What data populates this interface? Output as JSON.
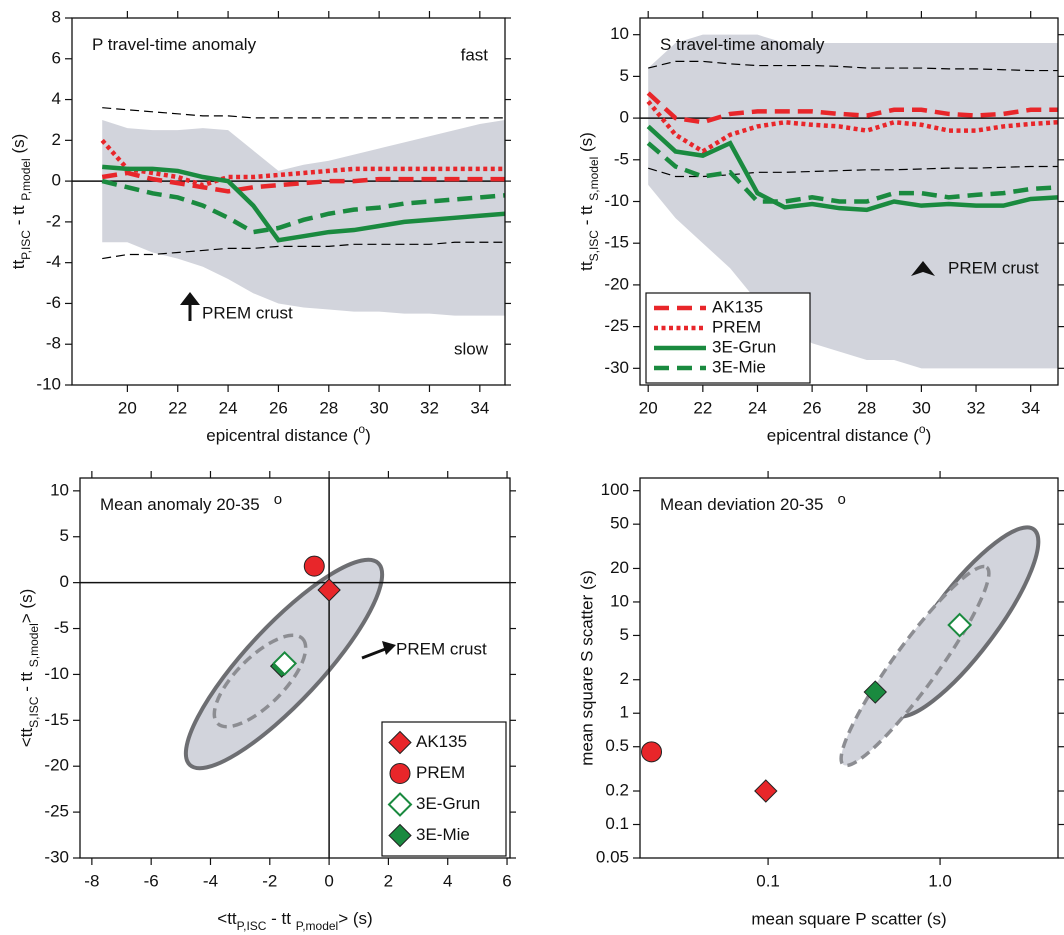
{
  "chart_data": [
    {
      "type": "line",
      "title": "P travel-time anomaly",
      "xlabel": [
        "epicentral distance (",
        "o",
        ")"
      ],
      "ylabel": [
        "tt",
        "P,ISC",
        " - tt ",
        "P,model",
        " (s)"
      ],
      "x": [
        19,
        20,
        21,
        22,
        23,
        24,
        25,
        26,
        27,
        28,
        29,
        30,
        31,
        32,
        33,
        34,
        35
      ],
      "xlim": [
        17.8,
        35
      ],
      "xticks": [
        20,
        22,
        24,
        26,
        28,
        30,
        32,
        34
      ],
      "ylim": [
        -10,
        8
      ],
      "yticks": [
        -10,
        -8,
        -6,
        -4,
        -2,
        0,
        2,
        4,
        6,
        8
      ],
      "hline": 0,
      "envelope": {
        "color": "#d2d4dc",
        "upper": [
          3.0,
          2.6,
          2.5,
          2.5,
          2.6,
          2.5,
          1.5,
          0.5,
          0.8,
          1.0,
          1.3,
          1.6,
          1.9,
          2.2,
          2.5,
          2.8,
          3.0
        ],
        "lower": [
          -3.0,
          -3.0,
          -3.5,
          -3.8,
          -4.2,
          -4.8,
          -5.5,
          -6.0,
          -6.2,
          -6.3,
          -6.4,
          -6.4,
          -6.5,
          -6.5,
          -6.6,
          -6.6,
          -6.6
        ]
      },
      "series": [
        {
          "color": "#000000",
          "style": "dashed",
          "values": [
            3.6,
            3.5,
            3.4,
            3.3,
            3.2,
            3.2,
            3.1,
            3.1,
            3.1,
            3.1,
            3.1,
            3.1,
            3.1,
            3.1,
            3.1,
            3.1,
            3.1
          ]
        },
        {
          "color": "#000000",
          "style": "dashed",
          "values": [
            -3.8,
            -3.6,
            -3.6,
            -3.5,
            -3.4,
            -3.3,
            -3.3,
            -3.2,
            -3.2,
            -3.2,
            -3.1,
            -3.1,
            -3.1,
            -3.1,
            -3.0,
            -3.0,
            -3.0
          ]
        },
        {
          "color": "#e8262a",
          "style": "dashed",
          "values": [
            0.2,
            0.4,
            0.1,
            -0.1,
            -0.3,
            -0.5,
            -0.3,
            -0.2,
            -0.1,
            0,
            0,
            0.1,
            0.1,
            0.1,
            0.1,
            0.1,
            0.1
          ]
        },
        {
          "color": "#e8262a",
          "style": "dotted",
          "values": [
            2.0,
            0.6,
            0.4,
            0.2,
            -0.2,
            0.2,
            0.2,
            0.3,
            0.4,
            0.5,
            0.6,
            0.6,
            0.6,
            0.6,
            0.6,
            0.6,
            0.6
          ]
        },
        {
          "color": "#1a8a3f",
          "style": "solid",
          "values": [
            0.7,
            0.6,
            0.6,
            0.5,
            0.2,
            0,
            -1.2,
            -2.9,
            -2.7,
            -2.5,
            -2.4,
            -2.2,
            -2.0,
            -1.9,
            -1.8,
            -1.7,
            -1.6
          ]
        },
        {
          "color": "#1a8a3f",
          "style": "dashed",
          "values": [
            0,
            -0.3,
            -0.6,
            -0.8,
            -1.2,
            -1.8,
            -2.5,
            -2.3,
            -1.9,
            -1.6,
            -1.4,
            -1.3,
            -1.1,
            -1.0,
            -0.9,
            -0.8,
            -0.7
          ]
        }
      ],
      "annotations": [
        "fast",
        "slow",
        "PREM crust"
      ]
    },
    {
      "type": "line",
      "title": "S travel-time anomaly",
      "xlabel": [
        "epicentral distance (",
        "o",
        ")"
      ],
      "ylabel": [
        "tt",
        "S,ISC",
        " - tt ",
        "S,model",
        " (s)"
      ],
      "x": [
        20,
        21,
        22,
        23,
        24,
        25,
        26,
        27,
        28,
        29,
        30,
        31,
        32,
        33,
        34,
        35
      ],
      "xlim": [
        19.7,
        35
      ],
      "xticks": [
        20,
        22,
        24,
        26,
        28,
        30,
        32,
        34
      ],
      "ylim": [
        -32,
        12
      ],
      "yticks": [
        -30,
        -25,
        -20,
        -15,
        -10,
        -5,
        0,
        5,
        10
      ],
      "hline": 0,
      "legend": "lower left",
      "envelope": {
        "color": "#d2d4dc",
        "upper": [
          6,
          9,
          10,
          10,
          10,
          9,
          9,
          9,
          9,
          9,
          9,
          9,
          9,
          9,
          9,
          9
        ],
        "lower": [
          -8,
          -12,
          -15,
          -18,
          -22,
          -25,
          -27,
          -28,
          -29,
          -29,
          -30,
          -30,
          -30,
          -30,
          -30,
          -30
        ]
      },
      "series": [
        {
          "color": "#000000",
          "style": "dashed",
          "values": [
            6,
            6.8,
            6.8,
            6.5,
            6.3,
            6.3,
            6.3,
            6.2,
            6,
            6,
            6,
            5.9,
            5.9,
            5.8,
            5.7,
            5.7
          ]
        },
        {
          "color": "#000000",
          "style": "dashed",
          "values": [
            -6,
            -7,
            -7,
            -6.8,
            -6.5,
            -6.5,
            -6.4,
            -6.3,
            -6.2,
            -6.2,
            -6.1,
            -6,
            -6,
            -5.9,
            -5.8,
            -5.8
          ]
        },
        {
          "name": "AK135",
          "color": "#e8262a",
          "style": "dashed",
          "values": [
            3,
            0,
            -0.5,
            0.5,
            0.8,
            0.8,
            0.8,
            0.5,
            0.3,
            1,
            1,
            0.5,
            0.3,
            0.5,
            1,
            1
          ]
        },
        {
          "name": "PREM",
          "color": "#e8262a",
          "style": "dotted",
          "values": [
            2,
            -2,
            -4,
            -2,
            -1,
            -0.5,
            -0.8,
            -1,
            -1.5,
            -0.5,
            -0.8,
            -1.5,
            -1.5,
            -1,
            -0.7,
            -0.5
          ]
        },
        {
          "name": "3E-Grun",
          "color": "#1a8a3f",
          "style": "solid",
          "values": [
            -1,
            -4,
            -4.5,
            -3,
            -9,
            -10.7,
            -10.3,
            -10.8,
            -11,
            -10,
            -10.5,
            -10.3,
            -10.5,
            -10.5,
            -9.7,
            -9.5
          ]
        },
        {
          "name": "3E-Mie",
          "color": "#1a8a3f",
          "style": "dashed",
          "values": [
            -3,
            -5.8,
            -7,
            -6.5,
            -10,
            -10,
            -9.5,
            -10,
            -10,
            -9,
            -9,
            -9.5,
            -9.2,
            -9,
            -8.5,
            -8.3
          ]
        }
      ],
      "annotations": [
        "PREM crust"
      ]
    },
    {
      "type": "scatter",
      "title": "Mean anomaly 20-35",
      "title_sup": "o",
      "xlabel": [
        "<tt",
        "P,ISC",
        " - tt ",
        "P,model",
        "> (s)"
      ],
      "ylabel": [
        "<tt",
        "S,ISC",
        " - tt ",
        "S,model",
        "> (s)"
      ],
      "xlim": [
        -8.4,
        6.1
      ],
      "xticks": [
        -8,
        -6,
        -4,
        -2,
        0,
        2,
        4,
        6
      ],
      "ylim": [
        -30,
        11.4
      ],
      "yticks": [
        -30,
        -25,
        -20,
        -15,
        -10,
        -5,
        0,
        5,
        10
      ],
      "hline": 0,
      "vline": 0,
      "legend": "lower right",
      "series": [
        {
          "name": "AK135",
          "color": "#e8262a",
          "marker": "diamond",
          "filled": true,
          "x": [
            0
          ],
          "values": [
            -0.8
          ]
        },
        {
          "name": "PREM",
          "color": "#e8262a",
          "marker": "circle",
          "filled": true,
          "x": [
            -0.5
          ],
          "values": [
            1.8
          ]
        },
        {
          "name": "3E-Grun",
          "color": "#1a8a3f",
          "marker": "diamond",
          "filled": false,
          "x": [
            -1.5
          ],
          "values": [
            -8.8
          ]
        },
        {
          "name": "3E-Mie",
          "color": "#1a8a3f",
          "marker": "diamond",
          "filled": true,
          "x": [
            -1.6
          ],
          "values": [
            -9.1
          ]
        }
      ],
      "annotations": [
        "PREM crust"
      ]
    },
    {
      "type": "scatter",
      "title": "Mean deviation 20-35",
      "title_sup": "o",
      "xlabel": "mean square P scatter (s)",
      "ylabel": "mean square S scatter (s)",
      "xscale": "log",
      "yscale": "log",
      "xlim": [
        0.018,
        4.85
      ],
      "xticks": [
        0.1,
        {
          "value": 1,
          "label": "1.0"
        }
      ],
      "ylim": [
        0.05,
        130
      ],
      "yticks": [
        0.05,
        0.1,
        0.2,
        0.5,
        1,
        2,
        5,
        10,
        20,
        50,
        100
      ],
      "series": [
        {
          "name": "AK135",
          "color": "#e8262a",
          "marker": "diamond",
          "filled": true,
          "x": [
            0.097
          ],
          "values": [
            0.2
          ]
        },
        {
          "name": "PREM",
          "color": "#e8262a",
          "marker": "circle",
          "filled": true,
          "x": [
            0.021
          ],
          "values": [
            0.45
          ]
        },
        {
          "name": "3E-Grun",
          "color": "#1a8a3f",
          "marker": "diamond",
          "filled": false,
          "x": [
            1.3
          ],
          "values": [
            6.2
          ]
        },
        {
          "name": "3E-Mie",
          "color": "#1a8a3f",
          "marker": "diamond",
          "filled": true,
          "x": [
            0.42
          ],
          "values": [
            1.55
          ]
        }
      ]
    }
  ]
}
